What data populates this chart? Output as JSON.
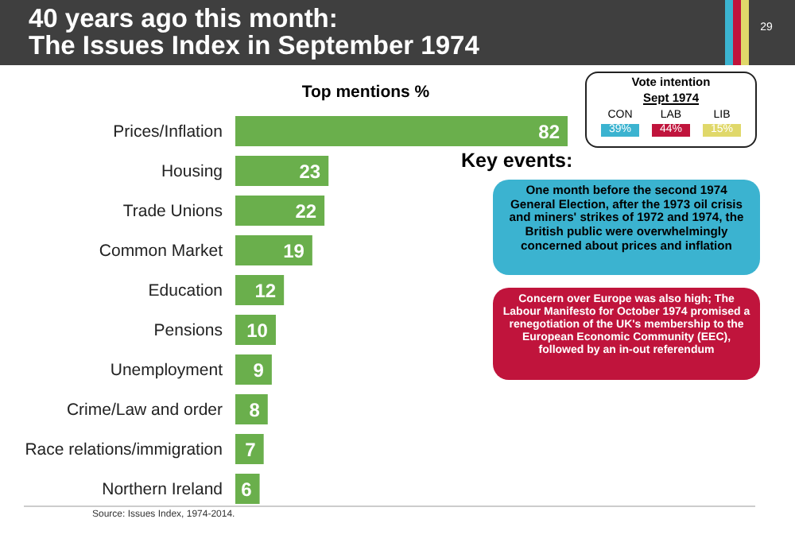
{
  "chart_data": {
    "type": "bar",
    "orientation": "horizontal",
    "title": "40 years ago this month:\nThe Issues Index in September 1974",
    "subtitle": "Top mentions %",
    "categories": [
      "Prices/Inflation",
      "Housing",
      "Trade Unions",
      "Common Market",
      "Education",
      "Pensions",
      "Unemployment",
      "Crime/Law and order",
      "Race relations/immigration",
      "Northern Ireland"
    ],
    "values": [
      82,
      23,
      22,
      19,
      12,
      10,
      9,
      8,
      7,
      6
    ],
    "color": "#6aaf4c",
    "data_labels": true,
    "annotations": [
      "29",
      "Vote intention",
      "Sept 1974",
      "CON",
      "LAB",
      "LIB",
      "39%",
      "44%",
      "15%",
      "Key events:",
      "One month before the second 1974 General Election, after the 1973 oil crisis and miners' strikes of 1972 and 1974, the British public were overwhelmingly concerned about prices and inflation",
      "Concern over Europe was also high; The Labour Manifesto for October 1974 promised a renegotiation of the UK's membership to the European Economic Community (EEC), followed by an in-out referendum",
      "Source: Issues Index, 1974-2014."
    ]
  }
}
